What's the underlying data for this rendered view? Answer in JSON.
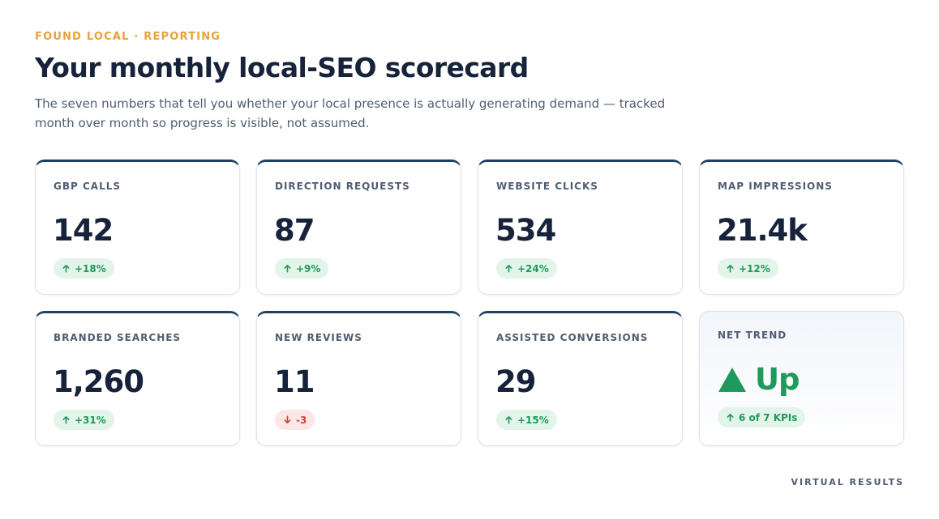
{
  "header": {
    "eyebrow": "FOUND LOCAL · REPORTING",
    "title": "Your monthly local-SEO scorecard",
    "subtitle": "The seven numbers that tell you whether your local presence is actually generating demand — tracked month over month so progress is visible, not assumed."
  },
  "kpis": [
    {
      "label": "GBP CALLS",
      "value": "142",
      "change": "+18%",
      "direction": "up",
      "icon": "arrow-up-icon"
    },
    {
      "label": "DIRECTION REQUESTS",
      "value": "87",
      "change": "+9%",
      "direction": "up",
      "icon": "arrow-up-icon"
    },
    {
      "label": "WEBSITE CLICKS",
      "value": "534",
      "change": "+24%",
      "direction": "up",
      "icon": "arrow-up-icon"
    },
    {
      "label": "MAP IMPRESSIONS",
      "value": "21.4k",
      "change": "+12%",
      "direction": "up",
      "icon": "arrow-up-icon"
    },
    {
      "label": "BRANDED SEARCHES",
      "value": "1,260",
      "change": "+31%",
      "direction": "up",
      "icon": "arrow-up-icon"
    },
    {
      "label": "NEW REVIEWS",
      "value": "11",
      "change": "-3",
      "direction": "down",
      "icon": "arrow-down-icon"
    },
    {
      "label": "ASSISTED CONVERSIONS",
      "value": "29",
      "change": "+15%",
      "direction": "up",
      "icon": "arrow-up-icon"
    }
  ],
  "net_trend": {
    "label": "NET TREND",
    "value": "Up",
    "summary": "6 of 7 KPIs",
    "icon": "triangle-up-icon"
  },
  "footer": {
    "brand": "VIRTUAL RESULTS"
  },
  "colors": {
    "accent": "#e7a23c",
    "positive": "#1f9a5c",
    "negative": "#c8473b",
    "card_top_border": "#1f4164",
    "text_primary": "#16233a"
  }
}
